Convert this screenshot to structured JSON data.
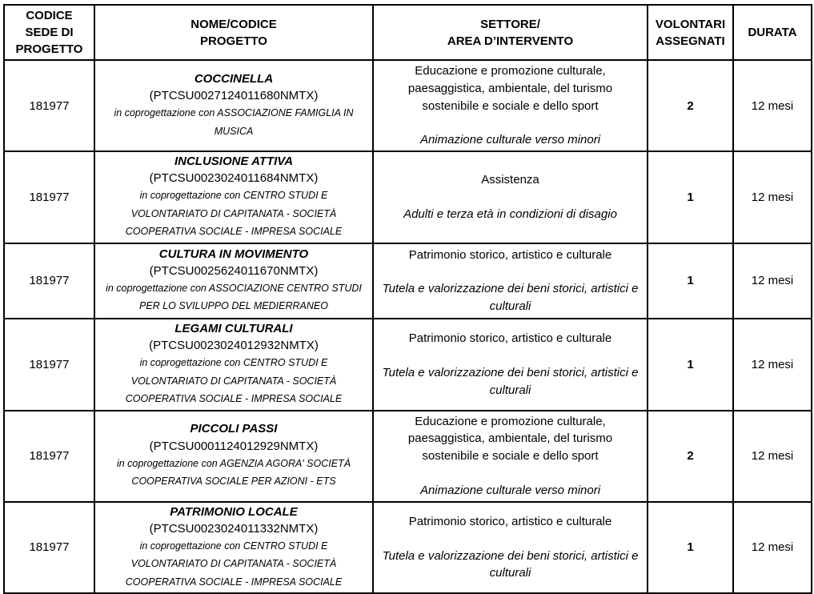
{
  "table": {
    "headers": {
      "codice": "CODICE\nSEDE DI\nPROGETTO",
      "nome": "NOME/CODICE\nPROGETTO",
      "settore": "SETTORE/\nAREA D’INTERVENTO",
      "volontari": "VOLONTARI\nASSEGNATI",
      "durata": "DURATA"
    },
    "rows": [
      {
        "codice_sede": "181977",
        "nome_progetto": "COCCINELLA",
        "codice_progetto": "(PTCSU0027124011680NMTX)",
        "coprogettazione": "in coprogettazione con ASSOCIAZIONE FAMIGLIA IN MUSICA",
        "settore": "Educazione e promozione culturale, paesaggistica, ambientale, del turismo sostenibile e sociale e dello sport",
        "area_intervento": "Animazione culturale verso minori",
        "volontari_assegnati": "2",
        "durata": "12 mesi"
      },
      {
        "codice_sede": "181977",
        "nome_progetto": "INCLUSIONE ATTIVA",
        "codice_progetto": "(PTCSU0023024011684NMTX)",
        "coprogettazione": "in coprogettazione con CENTRO STUDI E VOLONTARIATO DI CAPITANATA - SOCIETÀ COOPERATIVA SOCIALE - IMPRESA SOCIALE",
        "settore": "Assistenza",
        "area_intervento": "Adulti e terza età in condizioni di disagio",
        "volontari_assegnati": "1",
        "durata": "12 mesi"
      },
      {
        "codice_sede": "181977",
        "nome_progetto": "CULTURA IN MOVIMENTO",
        "codice_progetto": "(PTCSU0025624011670NMTX)",
        "coprogettazione": "in coprogettazione con ASSOCIAZIONE CENTRO STUDI PER LO SVILUPPO DEL MEDIERRANEO",
        "settore": "Patrimonio storico, artistico e culturale",
        "area_intervento": "Tutela e valorizzazione dei beni storici, artistici e culturali",
        "volontari_assegnati": "1",
        "durata": "12 mesi"
      },
      {
        "codice_sede": "181977",
        "nome_progetto": "LEGAMI CULTURALI",
        "codice_progetto": "(PTCSU0023024012932NMTX)",
        "coprogettazione": "in coprogettazione con CENTRO STUDI E VOLONTARIATO DI CAPITANATA - SOCIETÀ COOPERATIVA SOCIALE - IMPRESA SOCIALE",
        "settore": "Patrimonio storico, artistico e culturale",
        "area_intervento": "Tutela e valorizzazione dei beni storici, artistici e culturali",
        "volontari_assegnati": "1",
        "durata": "12 mesi"
      },
      {
        "codice_sede": "181977",
        "nome_progetto": "PICCOLI PASSI",
        "codice_progetto": "(PTCSU0001124012929NMTX)",
        "coprogettazione": "in coprogettazione con AGENZIA AGORA' SOCIETÀ COOPERATIVA SOCIALE PER AZIONI - ETS",
        "settore": "Educazione e promozione culturale, paesaggistica, ambientale, del turismo sostenibile e sociale e dello sport",
        "area_intervento": "Animazione culturale verso minori",
        "volontari_assegnati": "2",
        "durata": "12 mesi"
      },
      {
        "codice_sede": "181977",
        "nome_progetto": "PATRIMONIO LOCALE",
        "codice_progetto": "(PTCSU0023024011332NMTX)",
        "coprogettazione": "in coprogettazione con CENTRO STUDI E VOLONTARIATO DI CAPITANATA - SOCIETÀ COOPERATIVA SOCIALE - IMPRESA SOCIALE",
        "settore": "Patrimonio storico, artistico e culturale",
        "area_intervento": "Tutela e valorizzazione dei beni storici, artistici e culturali",
        "volontari_assegnati": "1",
        "durata": "12 mesi"
      }
    ]
  }
}
